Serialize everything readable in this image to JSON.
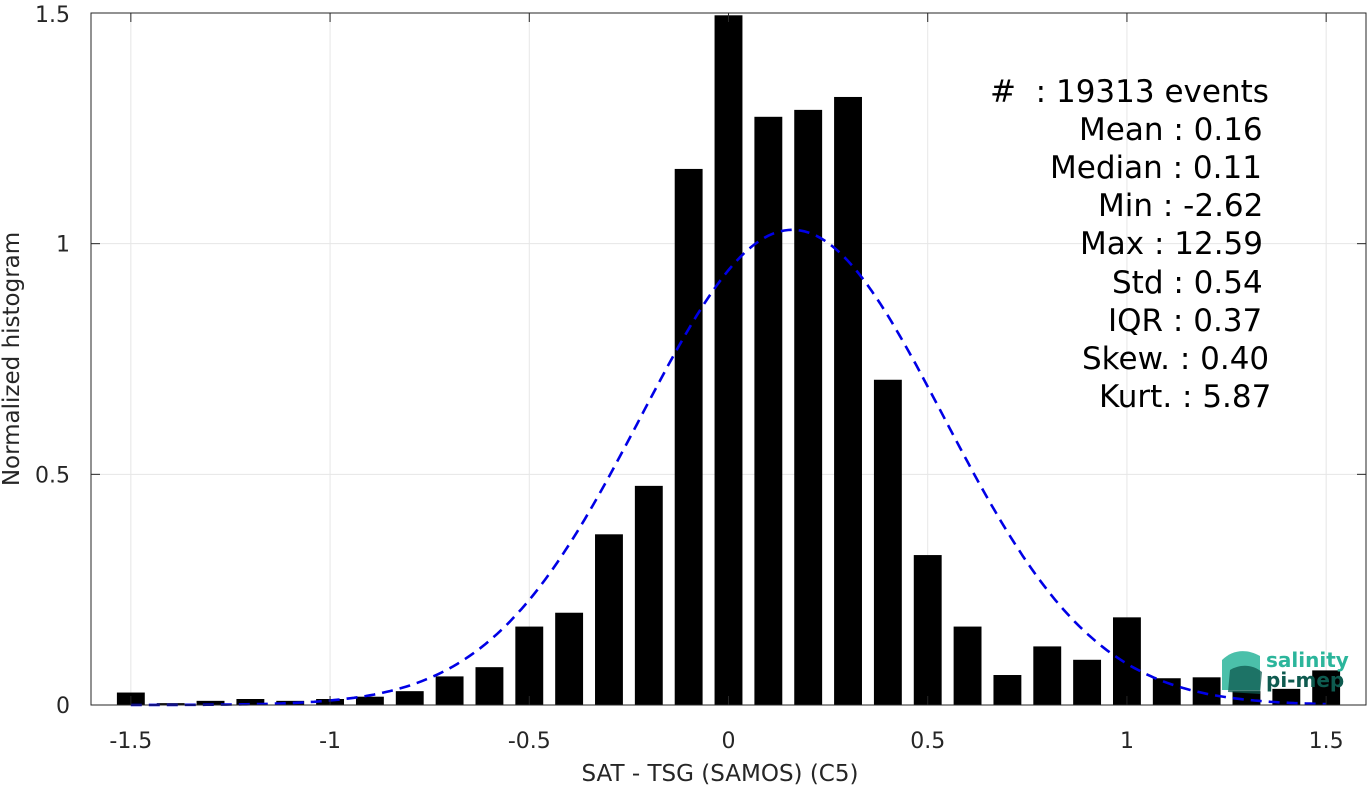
{
  "chart_data": {
    "type": "bar",
    "xlabel": "SAT - TSG (SAMOS) (C5)",
    "ylabel": "Normalized histogram",
    "xlim": [
      -1.6,
      1.6
    ],
    "ylim": [
      0,
      1.5
    ],
    "xticks": [
      -1.5,
      -1,
      -0.5,
      0,
      0.5,
      1,
      1.5
    ],
    "xtick_labels": [
      "-1.5",
      "-1",
      "-0.5",
      "0",
      "0.5",
      "1",
      "1.5"
    ],
    "yticks": [
      0,
      0.5,
      1,
      1.5
    ],
    "ytick_labels": [
      "0",
      "0.5",
      "1",
      "1.5"
    ],
    "grid": true,
    "bar_width": 0.07,
    "bars": {
      "x": [
        -1.5,
        -1.4,
        -1.3,
        -1.2,
        -1.1,
        -1.0,
        -0.9,
        -0.8,
        -0.7,
        -0.6,
        -0.5,
        -0.4,
        -0.3,
        -0.2,
        -0.1,
        0.0,
        0.1,
        0.2,
        0.3,
        0.4,
        0.5,
        0.6,
        0.7,
        0.8,
        0.9,
        1.0,
        1.1,
        1.2,
        1.3,
        1.4,
        1.5
      ],
      "values": [
        0.027,
        0.004,
        0.009,
        0.013,
        0.009,
        0.013,
        0.018,
        0.03,
        0.062,
        0.082,
        0.17,
        0.2,
        0.37,
        0.475,
        1.162,
        1.495,
        1.275,
        1.29,
        1.318,
        0.705,
        0.325,
        0.17,
        0.065,
        0.127,
        0.098,
        0.19,
        0.058,
        0.06,
        0.03,
        0.035,
        0.075
      ],
      "color": "#000000"
    },
    "fit_curve": {
      "style": "dashed",
      "color": "#0000e6",
      "mean": 0.16,
      "std": 0.38,
      "peak": 1.03
    },
    "annotations": [
      "#  : 19313 events",
      "Mean : 0.16",
      "Median : 0.11",
      "Min : -2.62",
      "Max : 12.59",
      "Std : 0.54",
      "IQR : 0.37",
      "Skew. : 0.40",
      "Kurt. : 5.87"
    ]
  },
  "logo": {
    "line1": "salinity",
    "line2": "pi-mep",
    "color_dark": "#0e5a4f",
    "color_light": "#2bb59b"
  }
}
